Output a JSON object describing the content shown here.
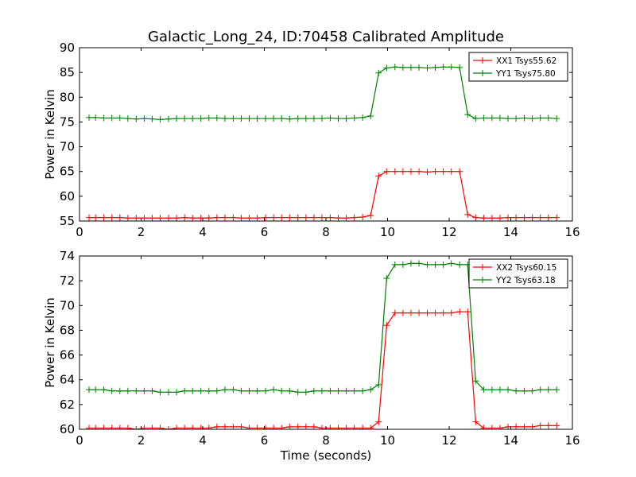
{
  "figure": {
    "title": "Galactic_Long_24, ID:70458 Calibrated Amplitude",
    "xlabel": "Time (seconds)"
  },
  "chart_data": [
    {
      "type": "line",
      "title": "Galactic_Long_24, ID:70458 Calibrated Amplitude",
      "xlabel": "",
      "ylabel": "Power in Kelvin",
      "xlim": [
        0,
        16
      ],
      "ylim": [
        55,
        90
      ],
      "xticks": [
        0,
        2,
        4,
        6,
        8,
        10,
        12,
        14,
        16
      ],
      "yticks": [
        55,
        60,
        65,
        70,
        75,
        80,
        85,
        90
      ],
      "legend": "top-right",
      "grid": false,
      "series": [
        {
          "name": "XX1 Tsys55.62",
          "color": "#ff0000",
          "x": [
            0.31,
            0.52,
            0.79,
            1.05,
            1.31,
            1.57,
            1.84,
            2.1,
            2.36,
            2.62,
            2.89,
            3.15,
            3.41,
            3.67,
            3.94,
            4.2,
            4.46,
            4.72,
            4.99,
            5.25,
            5.51,
            5.77,
            6.04,
            6.3,
            6.56,
            6.82,
            7.09,
            7.35,
            7.61,
            7.87,
            8.14,
            8.4,
            8.66,
            8.92,
            9.19,
            9.45,
            9.71,
            9.97,
            10.24,
            10.5,
            10.76,
            11.02,
            11.29,
            11.55,
            11.81,
            12.07,
            12.34,
            12.6,
            12.86,
            13.12,
            13.39,
            13.65,
            13.91,
            14.17,
            14.44,
            14.7,
            14.96,
            15.22,
            15.49
          ],
          "y": [
            55.7,
            55.7,
            55.7,
            55.7,
            55.7,
            55.6,
            55.6,
            55.6,
            55.6,
            55.6,
            55.6,
            55.6,
            55.7,
            55.6,
            55.6,
            55.6,
            55.7,
            55.7,
            55.7,
            55.6,
            55.6,
            55.6,
            55.7,
            55.7,
            55.7,
            55.7,
            55.7,
            55.7,
            55.7,
            55.7,
            55.7,
            55.6,
            55.6,
            55.7,
            55.8,
            56.1,
            64.1,
            65.0,
            65.0,
            65.0,
            65.0,
            65.0,
            64.9,
            65.0,
            65.0,
            65.0,
            65.0,
            56.3,
            55.7,
            55.6,
            55.6,
            55.6,
            55.7,
            55.7,
            55.7,
            55.7,
            55.7,
            55.7,
            55.7
          ]
        },
        {
          "name": "YY1 Tsys75.80",
          "color": "#008000",
          "x": [
            0.31,
            0.52,
            0.79,
            1.05,
            1.31,
            1.57,
            1.84,
            2.1,
            2.36,
            2.62,
            2.89,
            3.15,
            3.41,
            3.67,
            3.94,
            4.2,
            4.46,
            4.72,
            4.99,
            5.25,
            5.51,
            5.77,
            6.04,
            6.3,
            6.56,
            6.82,
            7.09,
            7.35,
            7.61,
            7.87,
            8.14,
            8.4,
            8.66,
            8.92,
            9.19,
            9.45,
            9.71,
            9.97,
            10.24,
            10.5,
            10.76,
            11.02,
            11.29,
            11.55,
            11.81,
            12.07,
            12.34,
            12.6,
            12.86,
            13.12,
            13.39,
            13.65,
            13.91,
            14.17,
            14.44,
            14.7,
            14.96,
            15.22,
            15.49
          ],
          "y": [
            75.9,
            75.9,
            75.8,
            75.8,
            75.8,
            75.7,
            75.6,
            75.7,
            75.6,
            75.5,
            75.6,
            75.7,
            75.7,
            75.7,
            75.7,
            75.8,
            75.8,
            75.7,
            75.7,
            75.7,
            75.7,
            75.7,
            75.7,
            75.7,
            75.7,
            75.6,
            75.7,
            75.7,
            75.7,
            75.7,
            75.8,
            75.7,
            75.7,
            75.8,
            75.9,
            76.2,
            84.9,
            85.9,
            86.1,
            86.0,
            86.0,
            86.0,
            85.9,
            86.0,
            86.1,
            86.1,
            86.0,
            76.5,
            75.7,
            75.8,
            75.8,
            75.8,
            75.7,
            75.7,
            75.8,
            75.7,
            75.8,
            75.8,
            75.7
          ]
        }
      ]
    },
    {
      "type": "line",
      "title": "",
      "xlabel": "Time (seconds)",
      "ylabel": "Power in Kelvin",
      "xlim": [
        0,
        16
      ],
      "ylim": [
        60,
        74
      ],
      "xticks": [
        0,
        2,
        4,
        6,
        8,
        10,
        12,
        14,
        16
      ],
      "yticks": [
        60,
        62,
        64,
        66,
        68,
        70,
        72,
        74
      ],
      "legend": "top-right",
      "grid": false,
      "series": [
        {
          "name": "XX2 Tsys60.15",
          "color": "#ff0000",
          "x": [
            0.31,
            0.52,
            0.79,
            1.05,
            1.31,
            1.57,
            1.84,
            2.1,
            2.36,
            2.62,
            2.89,
            3.15,
            3.41,
            3.67,
            3.94,
            4.2,
            4.46,
            4.72,
            4.99,
            5.25,
            5.51,
            5.77,
            6.04,
            6.3,
            6.56,
            6.82,
            7.09,
            7.35,
            7.61,
            7.87,
            8.14,
            8.4,
            8.66,
            8.92,
            9.19,
            9.45,
            9.71,
            9.97,
            10.24,
            10.5,
            10.76,
            11.02,
            11.29,
            11.55,
            11.81,
            12.07,
            12.34,
            12.6,
            12.86,
            13.12,
            13.39,
            13.65,
            13.91,
            14.17,
            14.44,
            14.7,
            14.96,
            15.22,
            15.49
          ],
          "y": [
            60.1,
            60.1,
            60.1,
            60.1,
            60.1,
            60.1,
            60.0,
            60.1,
            60.1,
            60.1,
            60.0,
            60.1,
            60.1,
            60.1,
            60.1,
            60.1,
            60.2,
            60.2,
            60.2,
            60.2,
            60.1,
            60.1,
            60.1,
            60.1,
            60.1,
            60.2,
            60.2,
            60.2,
            60.2,
            60.1,
            60.1,
            60.1,
            60.1,
            60.1,
            60.1,
            60.1,
            60.6,
            68.4,
            69.4,
            69.4,
            69.4,
            69.4,
            69.4,
            69.4,
            69.4,
            69.4,
            69.5,
            69.5,
            60.6,
            60.1,
            60.1,
            60.1,
            60.2,
            60.2,
            60.2,
            60.2,
            60.3,
            60.3,
            60.3
          ]
        },
        {
          "name": "YY2 Tsys63.18",
          "color": "#008000",
          "x": [
            0.31,
            0.52,
            0.79,
            1.05,
            1.31,
            1.57,
            1.84,
            2.1,
            2.36,
            2.62,
            2.89,
            3.15,
            3.41,
            3.67,
            3.94,
            4.2,
            4.46,
            4.72,
            4.99,
            5.25,
            5.51,
            5.77,
            6.04,
            6.3,
            6.56,
            6.82,
            7.09,
            7.35,
            7.61,
            7.87,
            8.14,
            8.4,
            8.66,
            8.92,
            9.19,
            9.45,
            9.71,
            9.97,
            10.24,
            10.5,
            10.76,
            11.02,
            11.29,
            11.55,
            11.81,
            12.07,
            12.34,
            12.6,
            12.86,
            13.12,
            13.39,
            13.65,
            13.91,
            14.17,
            14.44,
            14.7,
            14.96,
            15.22,
            15.49
          ],
          "y": [
            63.2,
            63.2,
            63.2,
            63.1,
            63.1,
            63.1,
            63.1,
            63.1,
            63.1,
            63.0,
            63.0,
            63.0,
            63.1,
            63.1,
            63.1,
            63.1,
            63.1,
            63.2,
            63.2,
            63.1,
            63.1,
            63.1,
            63.1,
            63.2,
            63.1,
            63.1,
            63.0,
            63.0,
            63.1,
            63.1,
            63.1,
            63.1,
            63.1,
            63.1,
            63.1,
            63.2,
            63.6,
            72.2,
            73.3,
            73.3,
            73.4,
            73.4,
            73.3,
            73.3,
            73.3,
            73.4,
            73.3,
            73.3,
            63.9,
            63.2,
            63.2,
            63.2,
            63.2,
            63.1,
            63.1,
            63.1,
            63.2,
            63.2,
            63.2
          ]
        }
      ]
    }
  ]
}
